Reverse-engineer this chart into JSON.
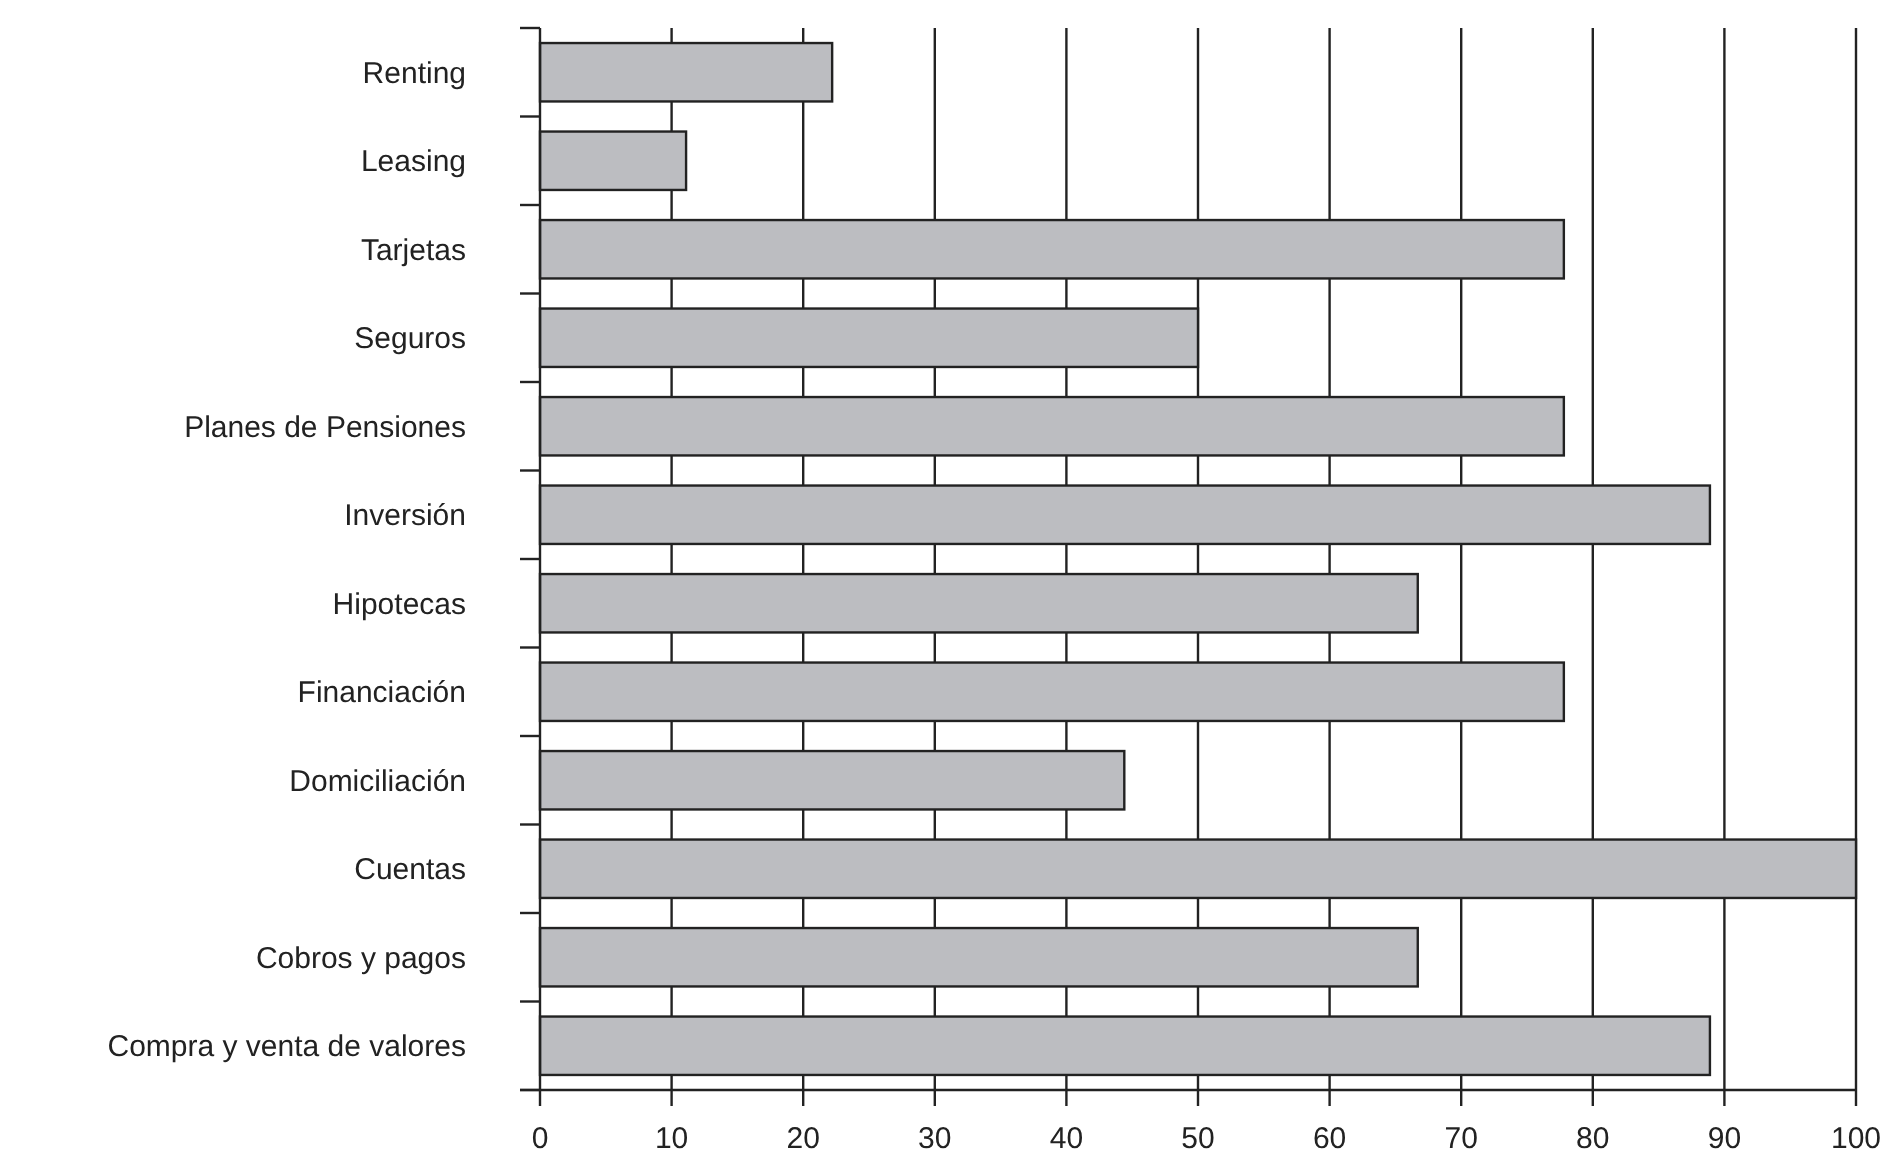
{
  "chart_data": {
    "type": "bar",
    "orientation": "horizontal",
    "categories": [
      "Renting",
      "Leasing",
      "Tarjetas",
      "Seguros",
      "Planes de Pensiones",
      "Inversión",
      "Hipotecas",
      "Financiación",
      "Domiciliación",
      "Cuentas",
      "Cobros y pagos",
      "Compra y venta de valores"
    ],
    "values": [
      22.2,
      11.1,
      77.8,
      50,
      77.8,
      88.9,
      66.7,
      77.8,
      44.4,
      100,
      66.7,
      88.9
    ],
    "color": "#bcbdc1",
    "xlim": [
      0,
      100
    ],
    "xticks": [
      0,
      10,
      20,
      30,
      40,
      50,
      60,
      70,
      80,
      90,
      100
    ],
    "grid": "x"
  }
}
